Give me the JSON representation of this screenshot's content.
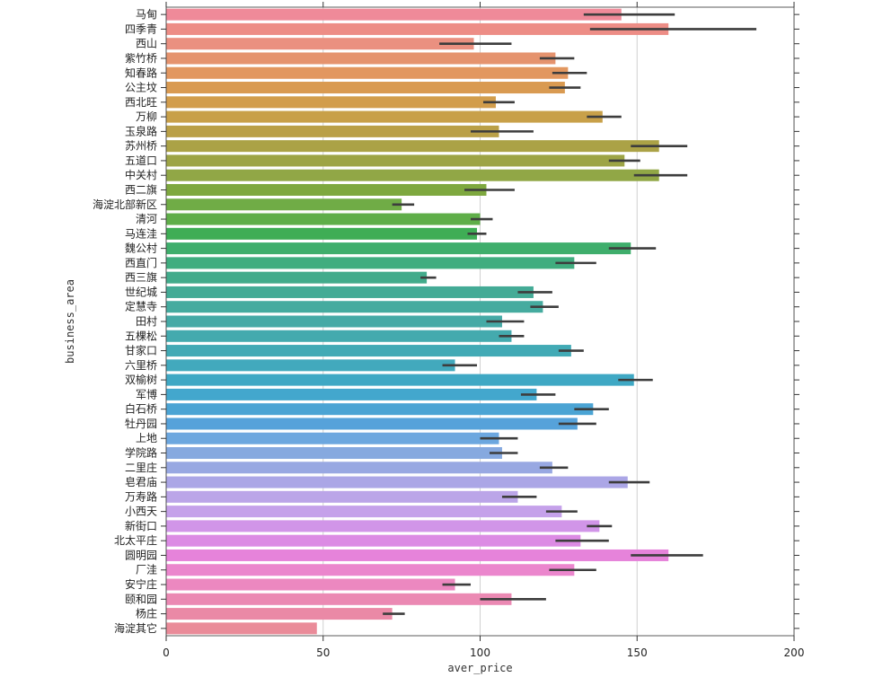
{
  "chart_data": {
    "type": "bar",
    "orientation": "horizontal",
    "xlabel": "aver_price",
    "ylabel": "business_area",
    "xlim": [
      0,
      200
    ],
    "xticks": [
      0,
      50,
      100,
      150,
      200
    ],
    "grid": "vertical",
    "categories": [
      "马甸",
      "四季青",
      "西山",
      "紫竹桥",
      "知春路",
      "公主坟",
      "西北旺",
      "万柳",
      "玉泉路",
      "苏州桥",
      "五道口",
      "中关村",
      "西二旗",
      "海淀北部新区",
      "清河",
      "马连洼",
      "魏公村",
      "西直门",
      "西三旗",
      "世纪城",
      "定慧寺",
      "田村",
      "五棵松",
      "甘家口",
      "六里桥",
      "双榆树",
      "军博",
      "白石桥",
      "牡丹园",
      "上地",
      "学院路",
      "二里庄",
      "皂君庙",
      "万寿路",
      "小西天",
      "新街口",
      "北太平庄",
      "圆明园",
      "厂洼",
      "安宁庄",
      "颐和园",
      "杨庄",
      "海淀其它"
    ],
    "values": [
      145,
      160,
      98,
      124,
      128,
      127,
      105,
      139,
      106,
      157,
      146,
      157,
      102,
      75,
      100,
      99,
      148,
      130,
      83,
      117,
      120,
      107,
      110,
      129,
      92,
      149,
      118,
      136,
      131,
      106,
      107,
      123,
      147,
      112,
      126,
      138,
      132,
      160,
      130,
      92,
      110,
      72,
      48
    ],
    "ci_low": [
      133,
      135,
      87,
      119,
      123,
      122,
      101,
      134,
      97,
      148,
      141,
      149,
      95,
      72,
      97,
      96,
      141,
      124,
      81,
      112,
      116,
      102,
      106,
      125,
      88,
      144,
      113,
      130,
      125,
      100,
      103,
      119,
      141,
      107,
      121,
      134,
      124,
      148,
      122,
      88,
      100,
      69,
      48
    ],
    "ci_high": [
      162,
      188,
      110,
      130,
      134,
      132,
      111,
      145,
      117,
      166,
      151,
      166,
      111,
      79,
      104,
      102,
      156,
      137,
      86,
      123,
      125,
      114,
      114,
      133,
      99,
      155,
      124,
      141,
      137,
      112,
      112,
      128,
      154,
      118,
      131,
      142,
      141,
      171,
      137,
      97,
      121,
      76,
      48
    ],
    "colors": [
      "#ef8a99",
      "#ed8d86",
      "#ea9080",
      "#e5936e",
      "#e29760",
      "#d99a51",
      "#d29d4c",
      "#c8a049",
      "#baa047",
      "#aba246",
      "#9da445",
      "#91a746",
      "#7ea83f",
      "#70ac46",
      "#5fae49",
      "#3fad55",
      "#3fae6c",
      "#40ad7f",
      "#42ab8b",
      "#44ab96",
      "#45ab9f",
      "#45aaa6",
      "#44aaae",
      "#42aab5",
      "#42a9bd",
      "#3fa8c4",
      "#43a7cd",
      "#4ba4d4",
      "#56a2da",
      "#6ca7df",
      "#86a9df",
      "#98a8e2",
      "#aba6e6",
      "#bba5e8",
      "#c5a1ea",
      "#d195e8",
      "#dc8be4",
      "#e683da",
      "#eb86cd",
      "#ec88c0",
      "#eb89b3",
      "#ea89a6",
      "#ea8b99"
    ]
  }
}
